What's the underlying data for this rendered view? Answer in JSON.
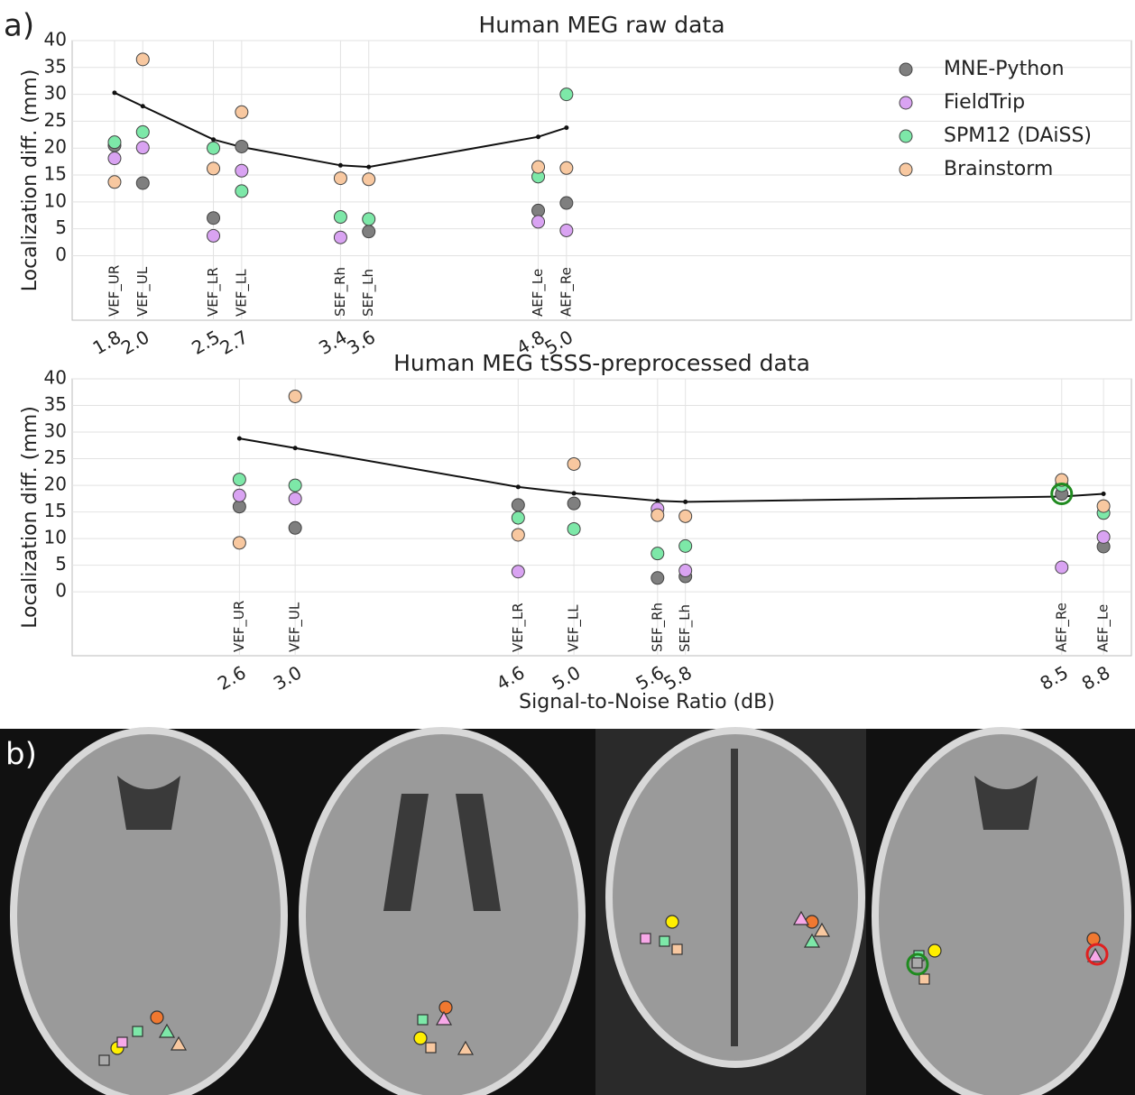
{
  "panel_a_label": "a)",
  "panel_b_label": "b)",
  "chart_data": [
    {
      "type": "scatter",
      "title": "Human MEG raw data",
      "ylabel": "Localization diff. (mm)",
      "x": [
        1.8,
        2.0,
        2.5,
        2.7,
        3.4,
        3.6,
        4.8,
        5.0
      ],
      "point_labels": [
        "VEF_UR",
        "VEF_UL",
        "VEF_LR",
        "VEF_LL",
        "SEF_Rh",
        "SEF_Lh",
        "AEF_Le",
        "AEF_Re"
      ],
      "xticks": [
        1.8,
        {
          "value": 2.0,
          "label": "2.0"
        },
        2.5,
        2.7,
        3.4,
        3.6,
        4.8,
        {
          "value": 5.0,
          "label": "5.0"
        }
      ],
      "xlim": [
        1.5,
        9.0
      ],
      "ylim": [
        -12,
        40
      ],
      "yticks": [
        0,
        5,
        10,
        15,
        20,
        25,
        30,
        35,
        40
      ],
      "grid": true,
      "legend": "upper right",
      "series": [
        {
          "name": "MNE-Python",
          "color": "#7f7f7f",
          "values": [
            20.5,
            13.5,
            7.0,
            20.3,
            null,
            4.5,
            8.4,
            9.8
          ]
        },
        {
          "name": "FieldTrip",
          "color": "#d9a3f2",
          "values": [
            18.1,
            20.1,
            3.7,
            15.8,
            3.4,
            null,
            6.3,
            4.7
          ]
        },
        {
          "name": "SPM12 (DAiSS)",
          "color": "#7de8a8",
          "values": [
            21.1,
            23.0,
            20.0,
            12.0,
            7.2,
            6.8,
            14.7,
            30.0
          ]
        },
        {
          "name": "Brainstorm",
          "color": "#f8c8a0",
          "values": [
            13.7,
            36.5,
            16.2,
            26.7,
            14.4,
            14.2,
            16.5,
            16.3
          ]
        }
      ],
      "trend": {
        "color": "#111111",
        "values": [
          30.3,
          27.8,
          21.6,
          20.2,
          16.8,
          16.5,
          22.1,
          23.8
        ]
      }
    },
    {
      "type": "scatter",
      "title": "Human MEG tSSS-preprocessed data",
      "ylabel": "Localization diff. (mm)",
      "xlabel": "Signal-to-Noise Ratio (dB)",
      "x": [
        2.6,
        3.0,
        4.6,
        5.0,
        5.6,
        5.8,
        8.5,
        8.8
      ],
      "point_labels": [
        "VEF_UR",
        "VEF_UL",
        "VEF_LR",
        "VEF_LL",
        "SEF_Rh",
        "SEF_Lh",
        "AEF_Re",
        "AEF_Le"
      ],
      "xticks": [
        2.6,
        {
          "value": 3.0,
          "label": "3.0"
        },
        4.6,
        {
          "value": 5.0,
          "label": "5.0"
        },
        5.6,
        5.8,
        8.5,
        8.8
      ],
      "xlim": [
        1.4,
        9.0
      ],
      "ylim": [
        -12,
        40
      ],
      "yticks": [
        0,
        5,
        10,
        15,
        20,
        25,
        30,
        35,
        40
      ],
      "grid": true,
      "series": [
        {
          "name": "MNE-Python",
          "color": "#7f7f7f",
          "values": [
            16.0,
            12.0,
            16.3,
            16.6,
            2.6,
            2.9,
            18.4,
            8.5
          ]
        },
        {
          "name": "FieldTrip",
          "color": "#d9a3f2",
          "values": [
            18.1,
            17.5,
            3.8,
            null,
            15.6,
            4.0,
            4.6,
            10.3
          ]
        },
        {
          "name": "SPM12 (DAiSS)",
          "color": "#7de8a8",
          "values": [
            21.1,
            20.0,
            13.9,
            11.8,
            7.2,
            8.6,
            20.0,
            14.8
          ]
        },
        {
          "name": "Brainstorm",
          "color": "#f8c8a0",
          "values": [
            9.2,
            36.7,
            10.7,
            24.0,
            14.4,
            14.2,
            21.0,
            16.1
          ]
        }
      ],
      "trend": {
        "color": "#111111",
        "values": [
          28.8,
          27.0,
          19.7,
          18.5,
          17.1,
          16.9,
          17.9,
          18.4
        ]
      },
      "highlight": {
        "series": 0,
        "index": 6,
        "color": "#1f8a1f"
      }
    }
  ]
}
